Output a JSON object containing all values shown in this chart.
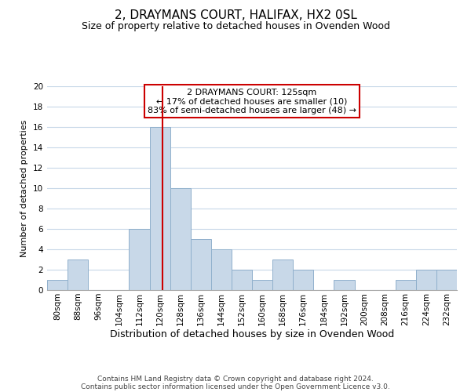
{
  "title": "2, DRAYMANS COURT, HALIFAX, HX2 0SL",
  "subtitle": "Size of property relative to detached houses in Ovenden Wood",
  "xlabel": "Distribution of detached houses by size in Ovenden Wood",
  "ylabel": "Number of detached properties",
  "bin_edges": [
    80,
    88,
    96,
    104,
    112,
    120,
    128,
    136,
    144,
    152,
    160,
    168,
    176,
    184,
    192,
    200,
    208,
    216,
    224,
    232,
    240
  ],
  "counts": [
    1,
    3,
    0,
    0,
    6,
    16,
    10,
    5,
    4,
    2,
    1,
    3,
    2,
    0,
    1,
    0,
    0,
    1,
    2,
    2
  ],
  "bar_color": "#c8d8e8",
  "bar_edgecolor": "#90b0cc",
  "vline_x": 125,
  "vline_color": "#cc0000",
  "ylim": [
    0,
    20
  ],
  "yticks": [
    0,
    2,
    4,
    6,
    8,
    10,
    12,
    14,
    16,
    18,
    20
  ],
  "annotation_title": "2 DRAYMANS COURT: 125sqm",
  "annotation_line1": "← 17% of detached houses are smaller (10)",
  "annotation_line2": "83% of semi-detached houses are larger (48) →",
  "annotation_box_facecolor": "#ffffff",
  "annotation_box_edgecolor": "#cc0000",
  "footer_line1": "Contains HM Land Registry data © Crown copyright and database right 2024.",
  "footer_line2": "Contains public sector information licensed under the Open Government Licence v3.0.",
  "background_color": "#ffffff",
  "grid_color": "#c8d8e8",
  "title_fontsize": 11,
  "subtitle_fontsize": 9,
  "xlabel_fontsize": 9,
  "ylabel_fontsize": 8,
  "tick_fontsize": 7.5,
  "annotation_fontsize": 8,
  "footer_fontsize": 6.5
}
